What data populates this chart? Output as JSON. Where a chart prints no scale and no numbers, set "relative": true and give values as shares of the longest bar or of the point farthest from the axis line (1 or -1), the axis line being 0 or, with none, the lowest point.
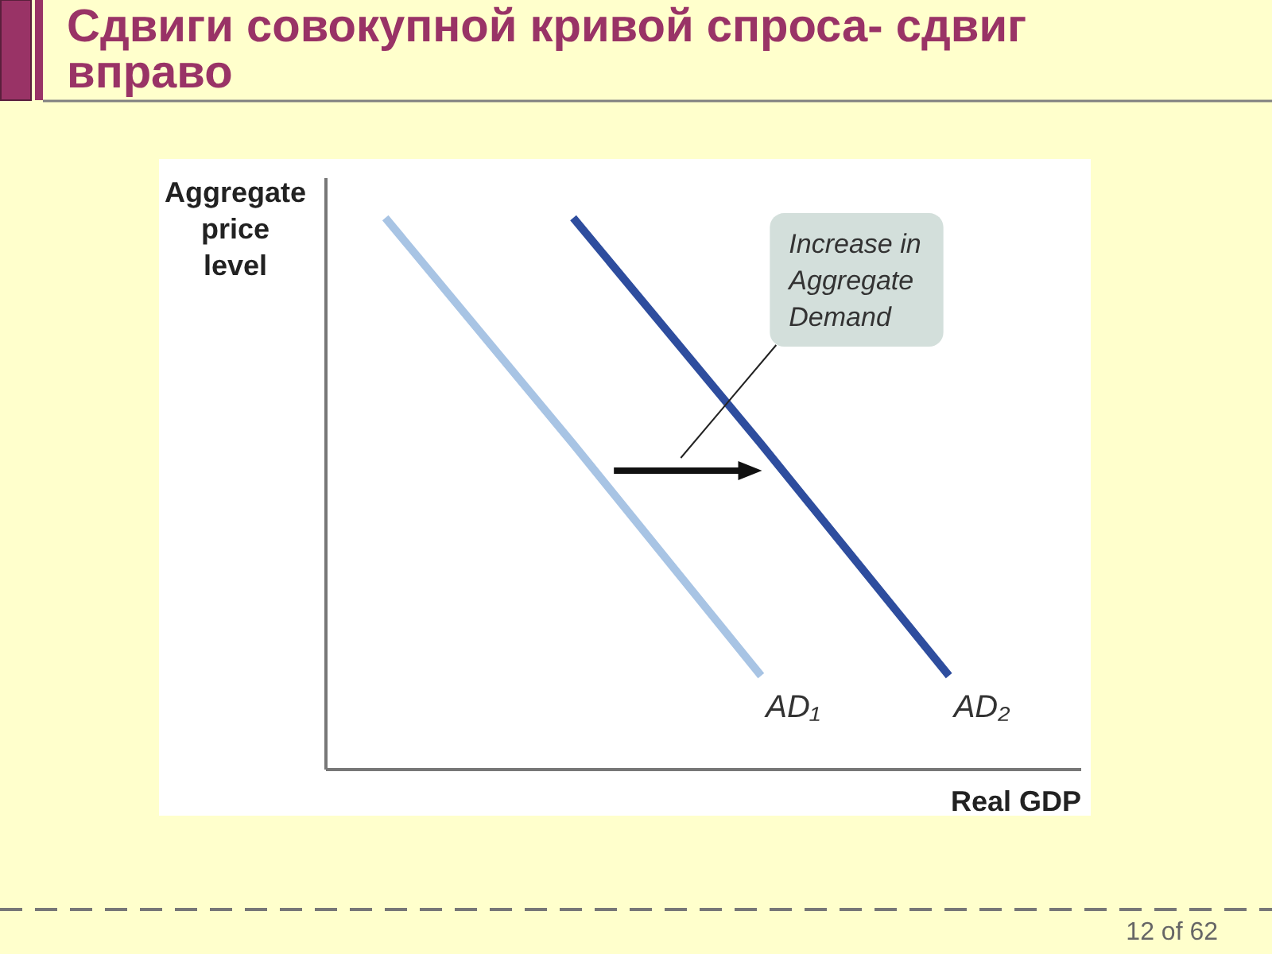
{
  "chart_data": {
    "type": "line",
    "title": "Сдвиги совокупной кривой спроса- сдвиг вправо",
    "xlabel": "Real GDP",
    "ylabel": "Aggregate price level",
    "relative": true,
    "tick_labels": false,
    "categories": [
      null,
      null,
      null,
      null
    ],
    "series": [
      {
        "name": "AD₁",
        "color": "#a8c4e4",
        "values": [
          1,
          0.59,
          0.17,
          null
        ]
      },
      {
        "name": "AD₂",
        "color": "#2e4d9e",
        "values": [
          null,
          1,
          0.59,
          0.17
        ]
      }
    ],
    "annotations": [
      "Increase in Aggregate Demand",
      "12 of 62"
    ]
  }
}
